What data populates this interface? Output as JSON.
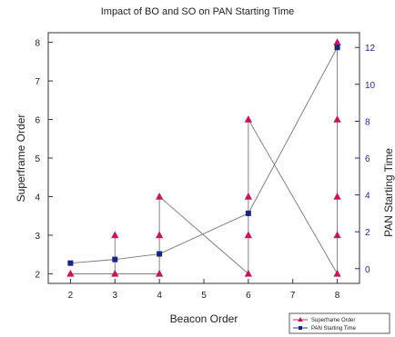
{
  "chart_data": {
    "type": "line",
    "title": "Impact of BO and SO on PAN Starting Time",
    "xlabel": "Beacon Order",
    "ylabel": "Superframe Order",
    "y2label": "PAN Starting Time",
    "xlim": [
      1.5,
      8.5
    ],
    "ylim": [
      1.75,
      8.25
    ],
    "y2lim": [
      -0.8,
      12.8
    ],
    "x_ticks": [
      "2",
      "3",
      "4",
      "5",
      "6",
      "7",
      "8"
    ],
    "y_ticks": [
      "2",
      "3",
      "4",
      "5",
      "6",
      "7",
      "8"
    ],
    "y2_ticks": [
      "0",
      "2",
      "4",
      "6",
      "8",
      "10",
      "12"
    ],
    "grid": false,
    "legend_position": "bottom-right",
    "series": [
      {
        "name": "Superframe Order",
        "axis": "left",
        "color": "#c2185b",
        "marker": "triangle",
        "x": [
          2,
          3,
          3,
          3,
          4,
          4,
          4,
          6,
          6,
          6,
          6,
          6,
          8,
          8,
          8,
          8,
          8,
          8
        ],
        "y": [
          2,
          2,
          3,
          2,
          2,
          3,
          4,
          2,
          2,
          3,
          4,
          6,
          2,
          2,
          3,
          4,
          6,
          8
        ]
      },
      {
        "name": "PAN Starting Time",
        "axis": "right",
        "color": "#1a237e",
        "marker": "square",
        "x": [
          2,
          3,
          4,
          6,
          8
        ],
        "y": [
          0.3,
          0.5,
          0.8,
          3.0,
          12.0
        ]
      }
    ]
  }
}
